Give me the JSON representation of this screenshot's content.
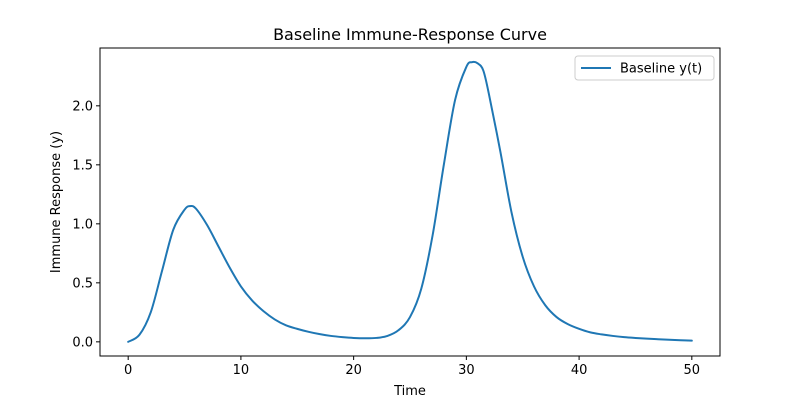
{
  "chart_data": {
    "type": "line",
    "title": "Baseline Immune-Response Curve",
    "xlabel": "Time",
    "ylabel": "Immune Response (y)",
    "xlim": [
      -2.5,
      52.5
    ],
    "ylim": [
      -0.12,
      2.49
    ],
    "xticks": [
      0,
      10,
      20,
      30,
      40,
      50
    ],
    "xtick_labels": [
      "0",
      "10",
      "20",
      "30",
      "40",
      "50"
    ],
    "yticks": [
      0.0,
      0.5,
      1.0,
      1.5,
      2.0
    ],
    "ytick_labels": [
      "0.0",
      "0.5",
      "1.0",
      "1.5",
      "2.0"
    ],
    "grid": false,
    "legend_position": "upper-right",
    "series": [
      {
        "name": "Baseline y(t)",
        "color": "#1f77b4",
        "x": [
          0,
          1,
          2,
          3,
          4,
          5,
          5.5,
          6,
          7,
          8,
          9,
          10,
          11,
          12,
          13,
          14,
          15,
          16,
          17,
          18,
          19,
          20,
          21,
          22,
          23,
          24,
          25,
          26,
          27,
          28,
          29,
          30,
          30.5,
          31,
          31.5,
          32,
          33,
          34,
          35,
          36,
          37,
          38,
          39,
          40,
          41,
          42,
          43,
          44,
          45,
          46,
          47,
          48,
          49,
          50
        ],
        "y": [
          0.0,
          0.06,
          0.25,
          0.6,
          0.95,
          1.12,
          1.15,
          1.13,
          0.99,
          0.81,
          0.63,
          0.47,
          0.35,
          0.26,
          0.19,
          0.14,
          0.11,
          0.085,
          0.065,
          0.05,
          0.04,
          0.033,
          0.03,
          0.033,
          0.05,
          0.1,
          0.21,
          0.45,
          0.9,
          1.5,
          2.05,
          2.33,
          2.37,
          2.36,
          2.3,
          2.1,
          1.62,
          1.1,
          0.72,
          0.47,
          0.31,
          0.21,
          0.15,
          0.11,
          0.08,
          0.063,
          0.05,
          0.04,
          0.033,
          0.027,
          0.022,
          0.018,
          0.014,
          0.01
        ]
      }
    ]
  }
}
